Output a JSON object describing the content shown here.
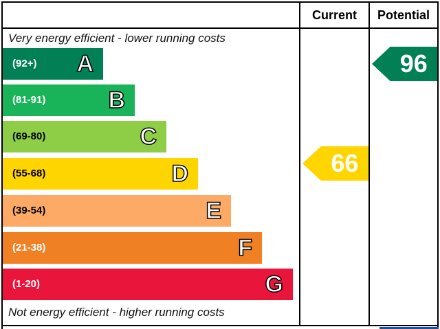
{
  "headers": {
    "current": "Current",
    "potential": "Potential"
  },
  "captions": {
    "top": "Very energy efficient - lower running costs",
    "bottom": "Not energy efficient - higher running costs"
  },
  "chart_data": {
    "type": "bar",
    "categories": [
      "A",
      "B",
      "C",
      "D",
      "E",
      "F",
      "G"
    ],
    "ranges": [
      "(92+)",
      "(81-91)",
      "(69-80)",
      "(55-68)",
      "(39-54)",
      "(21-38)",
      "(1-20)"
    ],
    "colors": [
      "#008054",
      "#19b459",
      "#8dce46",
      "#ffd500",
      "#fcaa65",
      "#ef8023",
      "#e9153b"
    ],
    "range_text_colors": [
      "#ffffff",
      "#ffffff",
      "#000000",
      "#000000",
      "#000000",
      "#ffffff",
      "#ffffff"
    ],
    "current": {
      "value": 66,
      "band": "D",
      "color": "#ffd500"
    },
    "potential": {
      "value": 96,
      "band": "A",
      "color": "#008054"
    }
  }
}
